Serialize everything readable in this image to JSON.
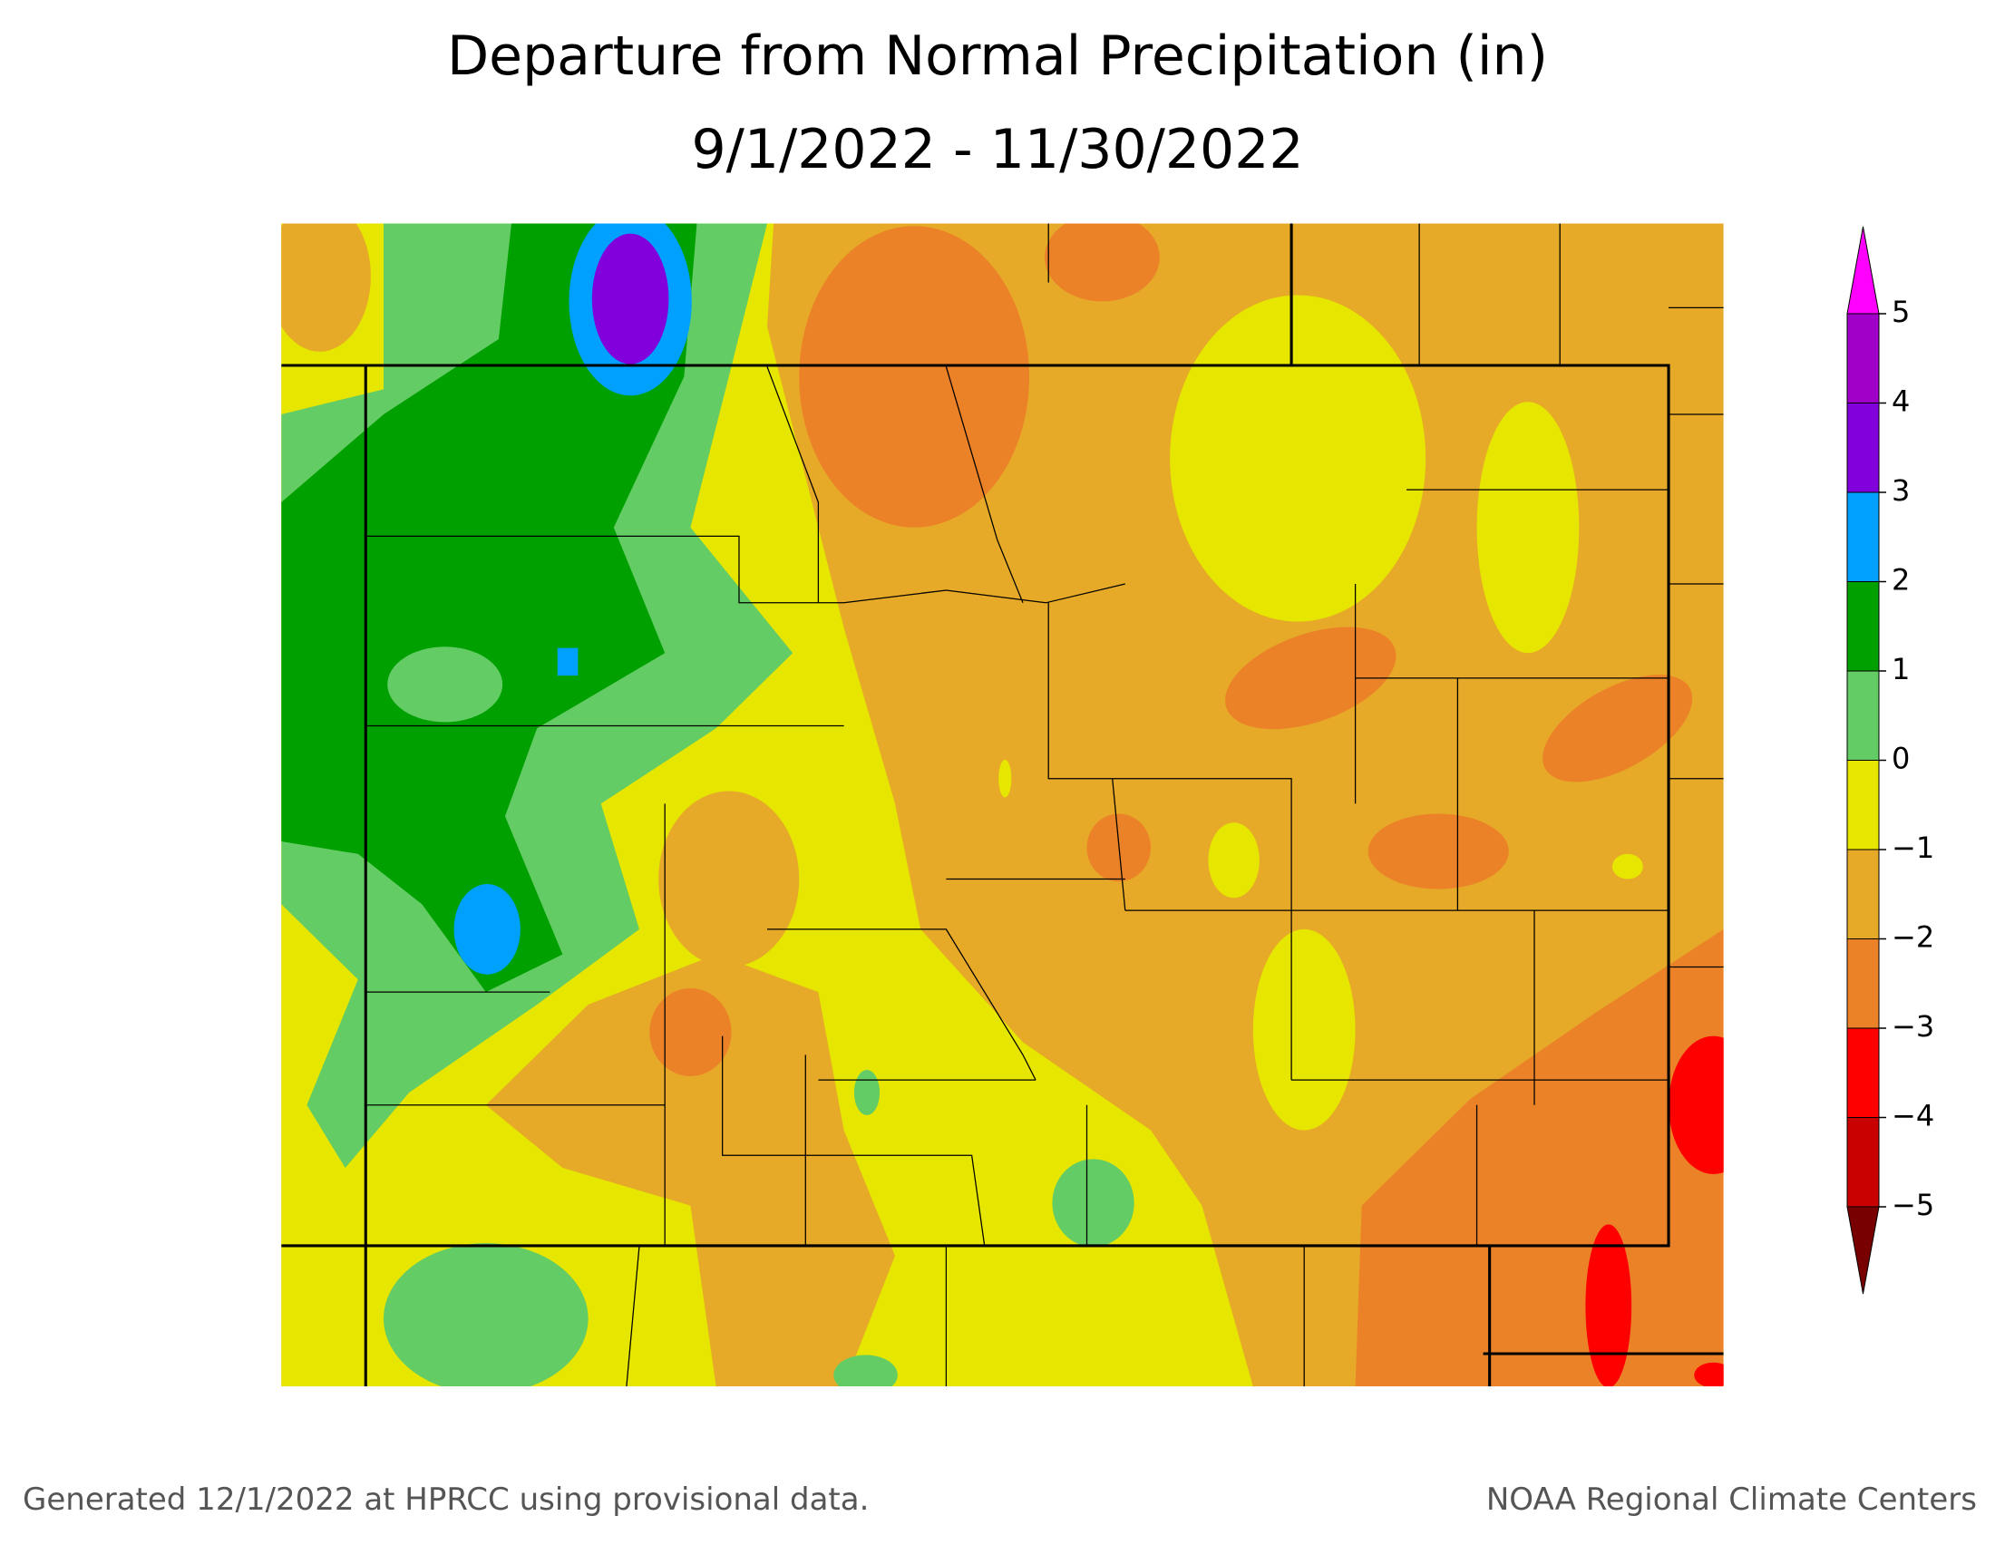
{
  "title": [
    "Departure from Normal Precipitation (in)",
    "9/1/2022 - 11/30/2022"
  ],
  "legend": {
    "ticks": [
      5,
      4,
      3,
      2,
      1,
      0,
      {
        "value": -1,
        "label": "−1"
      },
      {
        "value": -2,
        "label": "−2"
      },
      {
        "value": -3,
        "label": "−3"
      },
      {
        "value": -4,
        "label": "−4"
      },
      {
        "value": -5,
        "label": "−5"
      }
    ],
    "colors": [
      "#ff00ff",
      "#a000c8",
      "#8200dc",
      "#00a0ff",
      "#00a000",
      "#64cc64",
      "#e6e600",
      "#e6aa28",
      "#ec8228",
      "#ff0000",
      "#c80000",
      "#780000"
    ]
  },
  "footer": {
    "left": "Generated 12/1/2022 at HPRCC using provisional data.",
    "right": "NOAA Regional Climate Centers"
  }
}
